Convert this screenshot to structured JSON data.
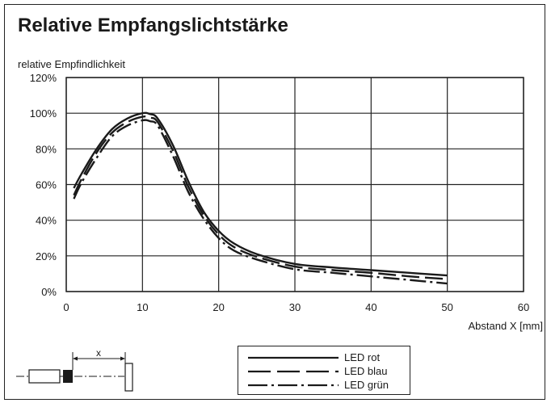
{
  "title": "Relative Empfangslichtstärke",
  "chart_data": {
    "type": "line",
    "xlabel": "Abstand X [mm]",
    "ylabel": "relative Empfindlichkeit",
    "xlim": [
      0,
      60
    ],
    "ylim": [
      0,
      120
    ],
    "x_ticks": [
      "0",
      "10",
      "20",
      "30",
      "40",
      "50",
      "60"
    ],
    "y_ticks": [
      "0%",
      "20%",
      "40%",
      "60%",
      "80%",
      "100%",
      "120%"
    ],
    "grid": true,
    "legend_position": "bottom-center",
    "series": [
      {
        "name": "LED rot",
        "style": "solid",
        "color": "#1a1a1a",
        "x": [
          1,
          2,
          4,
          6,
          8,
          10,
          11,
          12,
          14,
          16,
          18,
          20,
          22,
          25,
          30,
          35,
          40,
          45,
          50
        ],
        "y": [
          58,
          66,
          80,
          91,
          97,
          100,
          99.5,
          97,
          82,
          62,
          45,
          34,
          27,
          21,
          15.5,
          13.5,
          12,
          10.5,
          9
        ]
      },
      {
        "name": "LED blau",
        "style": "dashed",
        "color": "#1a1a1a",
        "x": [
          1,
          2,
          4,
          6,
          8,
          10,
          11,
          12,
          14,
          16,
          18,
          20,
          22,
          25,
          30,
          35,
          40,
          45,
          50
        ],
        "y": [
          54,
          63,
          78,
          89,
          95,
          98,
          97.5,
          95,
          79,
          59,
          43,
          32,
          25,
          19.5,
          14,
          12,
          10.5,
          8.5,
          7
        ]
      },
      {
        "name": "LED grün",
        "style": "dashdot",
        "color": "#1a1a1a",
        "x": [
          1,
          2,
          4,
          6,
          8,
          10,
          11,
          12,
          14,
          16,
          18,
          20,
          22,
          25,
          30,
          35,
          40,
          45,
          50
        ],
        "y": [
          52,
          61,
          75,
          87,
          93,
          96,
          95.5,
          93,
          76,
          56,
          41,
          30,
          23,
          18,
          12.5,
          10.5,
          8.5,
          6.5,
          4.5
        ]
      }
    ]
  },
  "sensor_diagram": {
    "label": "x"
  }
}
